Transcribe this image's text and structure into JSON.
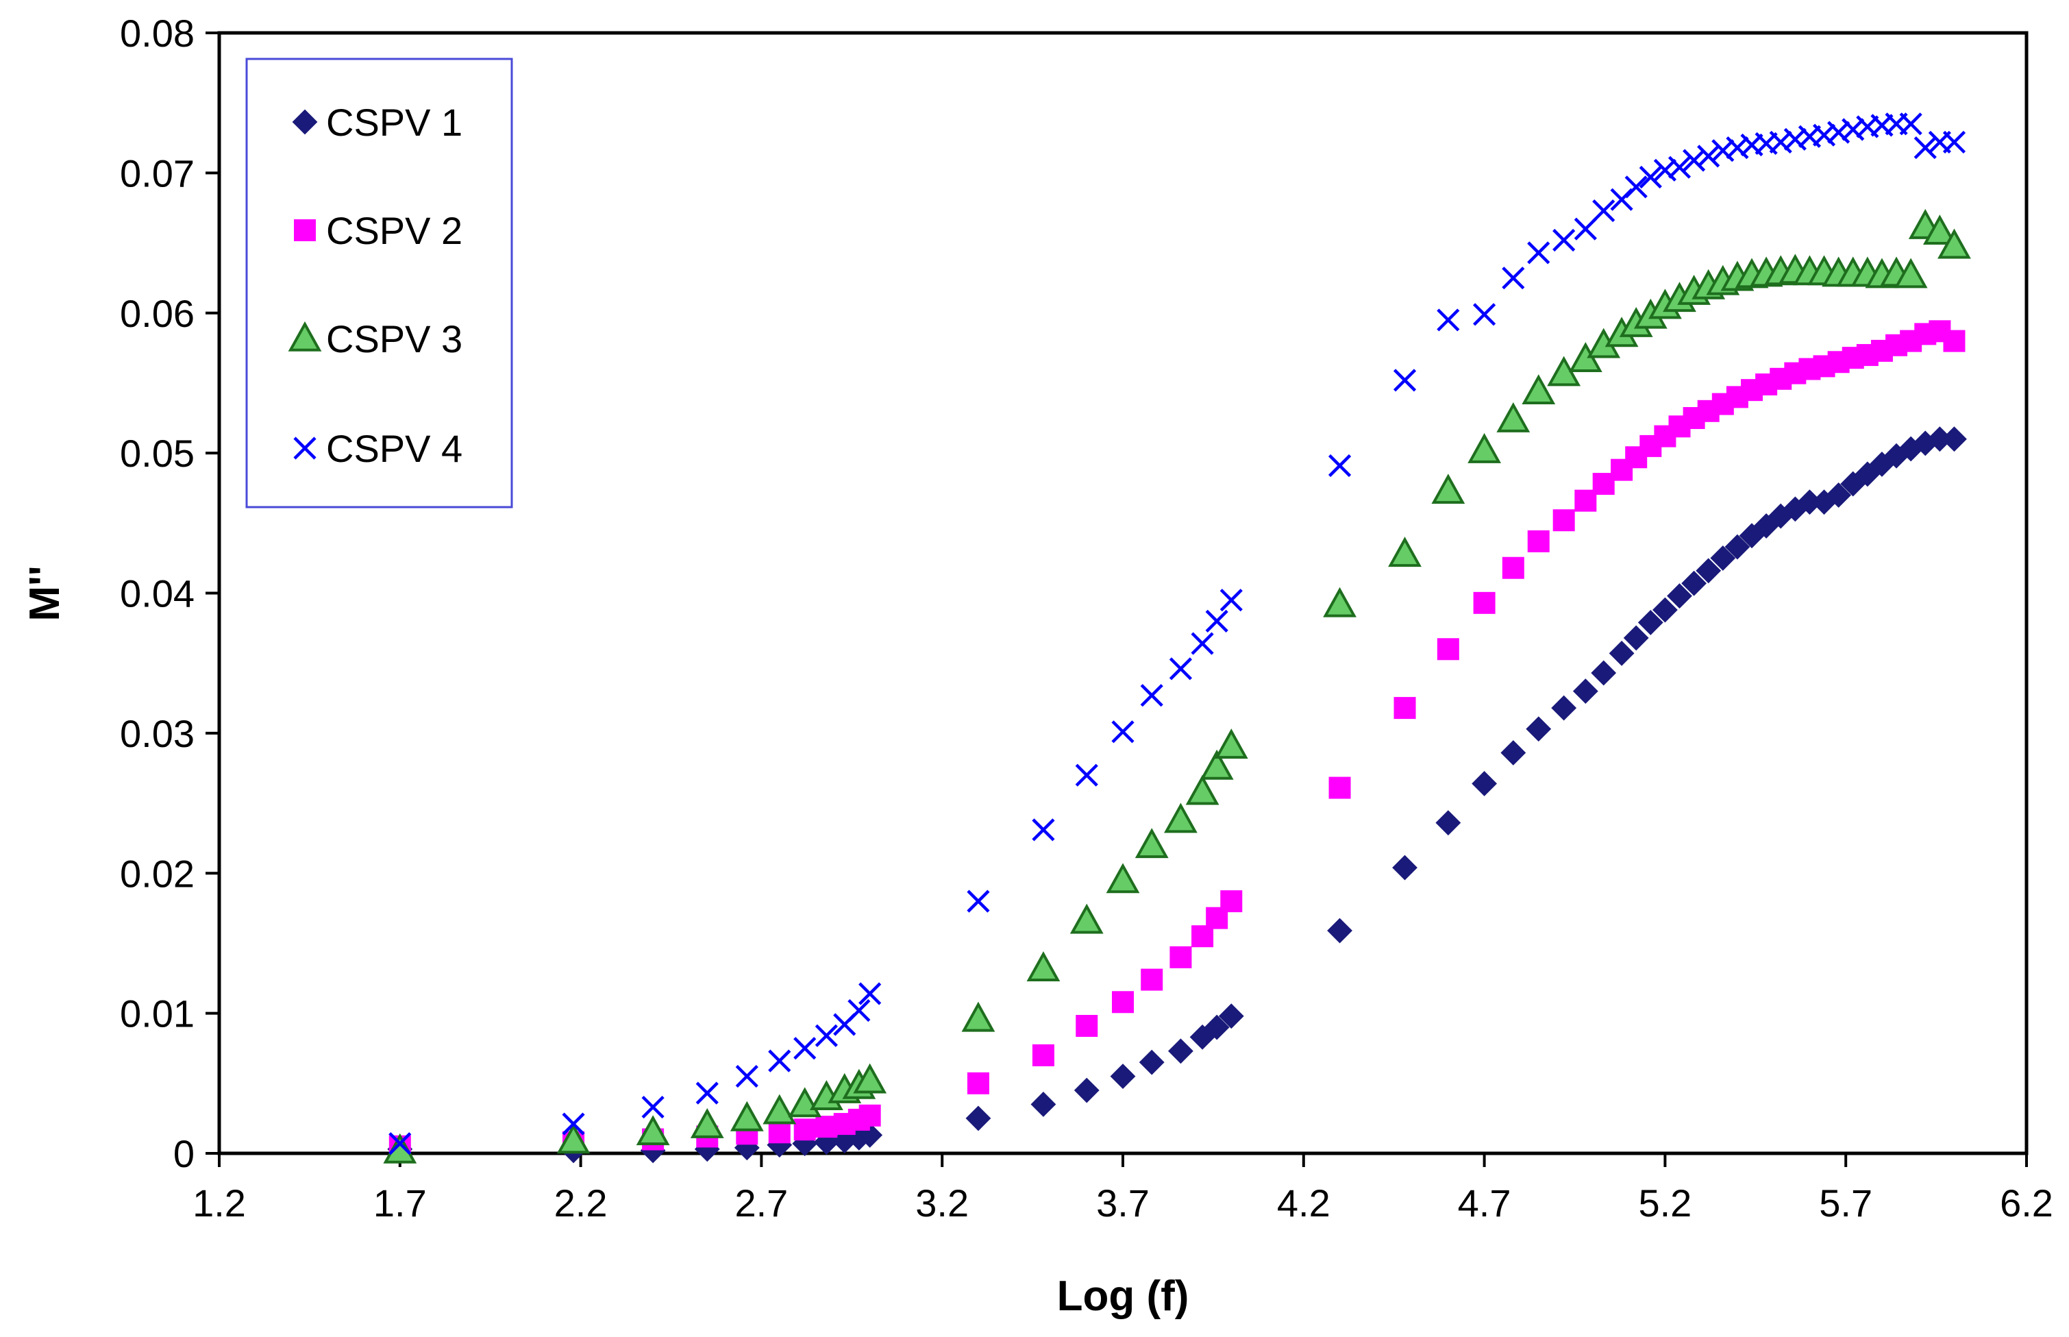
{
  "chart_data": {
    "type": "scatter",
    "xlabel": "Log (f)",
    "ylabel": "M''",
    "xlim": [
      1.2,
      6.2
    ],
    "ylim": [
      0,
      0.08
    ],
    "xticks": [
      "1.2",
      "1.7",
      "2.2",
      "2.7",
      "3.2",
      "3.7",
      "4.2",
      "4.7",
      "5.2",
      "5.7",
      "6.2"
    ],
    "yticks": [
      "0",
      "0.01",
      "0.02",
      "0.03",
      "0.04",
      "0.05",
      "0.06",
      "0.07",
      "0.08"
    ],
    "grid": false,
    "legend_position": "top-left",
    "series": [
      {
        "name": "CSPV 1",
        "marker": "diamond",
        "color": "#1a1a7a",
        "x": [
          1.7,
          2.18,
          2.4,
          2.55,
          2.66,
          2.75,
          2.82,
          2.88,
          2.93,
          2.97,
          3.0,
          3.3,
          3.48,
          3.6,
          3.7,
          3.78,
          3.86,
          3.92,
          3.96,
          4.0,
          4.3,
          4.48,
          4.6,
          4.7,
          4.78,
          4.85,
          4.92,
          4.98,
          5.03,
          5.08,
          5.12,
          5.16,
          5.2,
          5.24,
          5.28,
          5.32,
          5.36,
          5.4,
          5.44,
          5.48,
          5.52,
          5.56,
          5.6,
          5.64,
          5.68,
          5.72,
          5.76,
          5.8,
          5.84,
          5.88,
          5.92,
          5.96,
          6.0
        ],
        "y": [
          0.0003,
          0.0002,
          0.0002,
          0.0003,
          0.0004,
          0.0006,
          0.0007,
          0.0008,
          0.0009,
          0.0011,
          0.0013,
          0.0025,
          0.0035,
          0.0045,
          0.0055,
          0.0065,
          0.0073,
          0.0083,
          0.009,
          0.0098,
          0.0159,
          0.0204,
          0.0236,
          0.0264,
          0.0286,
          0.0303,
          0.0318,
          0.033,
          0.0343,
          0.0357,
          0.0368,
          0.0379,
          0.0388,
          0.0398,
          0.0407,
          0.0416,
          0.0425,
          0.0433,
          0.0441,
          0.0448,
          0.0455,
          0.046,
          0.0465,
          0.0465,
          0.047,
          0.0478,
          0.0485,
          0.0492,
          0.0498,
          0.0503,
          0.0507,
          0.051,
          0.051
        ]
      },
      {
        "name": "CSPV 2",
        "marker": "square",
        "color": "#ff00ff",
        "x": [
          1.7,
          2.18,
          2.4,
          2.55,
          2.66,
          2.75,
          2.82,
          2.88,
          2.93,
          2.97,
          3.0,
          3.3,
          3.48,
          3.6,
          3.7,
          3.78,
          3.86,
          3.92,
          3.96,
          4.0,
          4.3,
          4.48,
          4.6,
          4.7,
          4.78,
          4.85,
          4.92,
          4.98,
          5.03,
          5.08,
          5.12,
          5.16,
          5.2,
          5.24,
          5.28,
          5.32,
          5.36,
          5.4,
          5.44,
          5.48,
          5.52,
          5.56,
          5.6,
          5.64,
          5.68,
          5.72,
          5.76,
          5.8,
          5.84,
          5.88,
          5.92,
          5.96,
          6.0
        ],
        "y": [
          0.0005,
          0.0008,
          0.001,
          0.0012,
          0.0014,
          0.0015,
          0.0017,
          0.0019,
          0.0021,
          0.0024,
          0.0027,
          0.005,
          0.007,
          0.0091,
          0.0108,
          0.0124,
          0.014,
          0.0155,
          0.0168,
          0.018,
          0.0261,
          0.0318,
          0.036,
          0.0393,
          0.0418,
          0.0437,
          0.0452,
          0.0466,
          0.0478,
          0.0488,
          0.0497,
          0.0505,
          0.0512,
          0.0519,
          0.0525,
          0.053,
          0.0535,
          0.054,
          0.0545,
          0.0549,
          0.0553,
          0.0557,
          0.056,
          0.0562,
          0.0565,
          0.0568,
          0.057,
          0.0573,
          0.0577,
          0.058,
          0.0585,
          0.0587,
          0.058
        ]
      },
      {
        "name": "CSPV 3",
        "marker": "triangle",
        "color": "#66cc66",
        "x": [
          1.7,
          2.18,
          2.4,
          2.55,
          2.66,
          2.75,
          2.82,
          2.88,
          2.93,
          2.97,
          3.0,
          3.3,
          3.48,
          3.6,
          3.7,
          3.78,
          3.86,
          3.92,
          3.96,
          4.0,
          4.3,
          4.48,
          4.6,
          4.7,
          4.78,
          4.85,
          4.92,
          4.98,
          5.03,
          5.08,
          5.12,
          5.16,
          5.2,
          5.24,
          5.28,
          5.32,
          5.36,
          5.4,
          5.44,
          5.48,
          5.52,
          5.56,
          5.6,
          5.64,
          5.68,
          5.72,
          5.76,
          5.8,
          5.84,
          5.88,
          5.92,
          5.96,
          6.0
        ],
        "y": [
          0.0002,
          0.0009,
          0.0015,
          0.002,
          0.0025,
          0.003,
          0.0035,
          0.004,
          0.0045,
          0.0048,
          0.0052,
          0.0096,
          0.0132,
          0.0166,
          0.0195,
          0.022,
          0.0238,
          0.0258,
          0.0276,
          0.0291,
          0.0392,
          0.0428,
          0.0473,
          0.0502,
          0.0524,
          0.0544,
          0.0557,
          0.0567,
          0.0577,
          0.0585,
          0.0592,
          0.0598,
          0.0605,
          0.061,
          0.0615,
          0.0619,
          0.0622,
          0.0625,
          0.0627,
          0.0628,
          0.0629,
          0.063,
          0.0629,
          0.0629,
          0.0628,
          0.0628,
          0.0628,
          0.0627,
          0.0628,
          0.0627,
          0.0662,
          0.0658,
          0.0648
        ]
      },
      {
        "name": "CSPV 4",
        "marker": "x",
        "color": "#0000ff",
        "x": [
          1.7,
          2.18,
          2.4,
          2.55,
          2.66,
          2.75,
          2.82,
          2.88,
          2.93,
          2.97,
          3.0,
          3.3,
          3.48,
          3.6,
          3.7,
          3.78,
          3.86,
          3.92,
          3.96,
          4.0,
          4.3,
          4.48,
          4.6,
          4.7,
          4.78,
          4.85,
          4.92,
          4.98,
          5.03,
          5.08,
          5.12,
          5.16,
          5.2,
          5.24,
          5.28,
          5.32,
          5.36,
          5.4,
          5.44,
          5.48,
          5.52,
          5.56,
          5.6,
          5.64,
          5.68,
          5.72,
          5.76,
          5.8,
          5.84,
          5.88,
          5.92,
          5.96,
          6.0
        ],
        "y": [
          0.0007,
          0.0021,
          0.0033,
          0.0043,
          0.0055,
          0.0066,
          0.0075,
          0.0084,
          0.0092,
          0.0102,
          0.0114,
          0.018,
          0.0231,
          0.027,
          0.0301,
          0.0327,
          0.0346,
          0.0364,
          0.038,
          0.0395,
          0.0491,
          0.0552,
          0.0595,
          0.0599,
          0.0625,
          0.0643,
          0.0652,
          0.066,
          0.0673,
          0.0681,
          0.069,
          0.0697,
          0.0702,
          0.0704,
          0.0709,
          0.0712,
          0.0716,
          0.0718,
          0.072,
          0.0721,
          0.0722,
          0.0724,
          0.0726,
          0.0727,
          0.0729,
          0.0731,
          0.0733,
          0.0734,
          0.0735,
          0.0735,
          0.0718,
          0.0722,
          0.0722
        ]
      }
    ]
  }
}
